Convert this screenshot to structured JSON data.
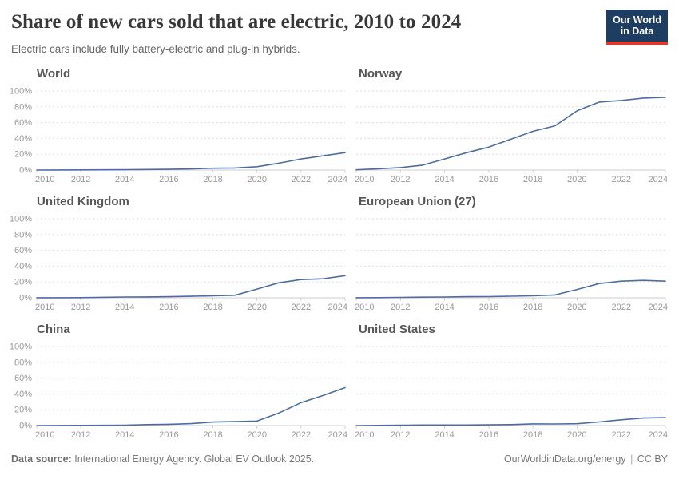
{
  "header": {
    "title": "Share of new cars sold that are electric, 2010 to 2024",
    "subtitle": "Electric cars include fully battery-electric and plug-in hybrids."
  },
  "logo": {
    "line1": "Our World",
    "line2": "in Data",
    "bg_color": "#1d3d63",
    "accent_color": "#e0392f"
  },
  "footer": {
    "datasource_label": "Data source:",
    "datasource_text": "International Energy Agency. Global EV Outlook 2025.",
    "link": "OurWorldinData.org/energy",
    "separator": "|",
    "license": "CC BY"
  },
  "chart_data": {
    "type": "line",
    "unit": "%",
    "x": [
      2010,
      2011,
      2012,
      2013,
      2014,
      2015,
      2016,
      2017,
      2018,
      2019,
      2020,
      2021,
      2022,
      2023,
      2024
    ],
    "xticks": [
      2010,
      2012,
      2014,
      2016,
      2018,
      2020,
      2022,
      2024
    ],
    "yticks": [
      0,
      20,
      40,
      60,
      80,
      100
    ],
    "ytick_suffix": "%",
    "ylim": [
      0,
      100
    ],
    "grid": "horizontal-dashed",
    "legend": "none",
    "line_color": "#4c6e9f",
    "axis_color": "#cccccc",
    "grid_color": "#dddddd",
    "tick_label_color": "#999999",
    "panels": [
      {
        "title": "World",
        "values": [
          0.0,
          0.1,
          0.2,
          0.3,
          0.4,
          0.7,
          0.9,
          1.4,
          2.3,
          2.6,
          4.2,
          8.7,
          14,
          18,
          22
        ]
      },
      {
        "title": "Norway",
        "values": [
          0.3,
          1.6,
          3.1,
          6.2,
          14,
          22,
          29,
          39,
          49,
          56,
          75,
          86,
          88,
          91,
          92
        ]
      },
      {
        "title": "United Kingdom",
        "values": [
          0.1,
          0.1,
          0.2,
          0.6,
          1.0,
          1.1,
          1.4,
          1.9,
          2.5,
          3.2,
          11,
          19,
          23,
          24,
          28
        ]
      },
      {
        "title": "European Union (27)",
        "values": [
          0.1,
          0.2,
          0.5,
          0.8,
          1.0,
          1.4,
          1.5,
          2.0,
          2.5,
          3.6,
          10.5,
          18,
          21,
          22,
          21
        ]
      },
      {
        "title": "China",
        "values": [
          0.0,
          0.1,
          0.2,
          0.3,
          0.5,
          1.2,
          1.6,
          2.4,
          4.4,
          4.9,
          5.7,
          16,
          29,
          38,
          48
        ]
      },
      {
        "title": "United States",
        "values": [
          0.0,
          0.2,
          0.4,
          0.7,
          0.7,
          0.7,
          0.9,
          1.2,
          2.1,
          2.0,
          2.3,
          4.5,
          7.3,
          9.5,
          10
        ]
      }
    ]
  }
}
